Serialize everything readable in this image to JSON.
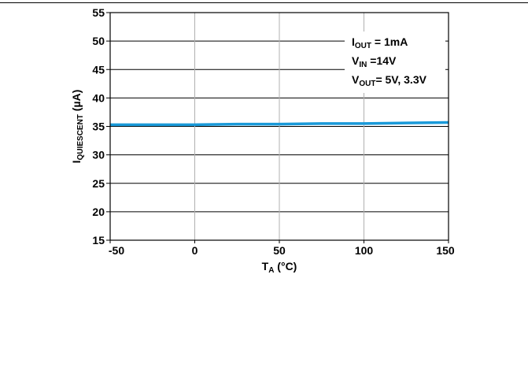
{
  "chart_data": {
    "type": "line",
    "x": [
      -50,
      -25,
      0,
      25,
      50,
      75,
      100,
      125,
      150
    ],
    "series": [
      {
        "values": [
          35.3,
          35.3,
          35.3,
          35.4,
          35.4,
          35.5,
          35.5,
          35.6,
          35.7
        ]
      }
    ],
    "xlabel_main": "T",
    "xlabel_sub": "A",
    "xlabel_unit": " (°C)",
    "ylabel_main": "I",
    "ylabel_sub": "QUIESCENT",
    "ylabel_unit": " (µA)",
    "xlim": [
      -50,
      150
    ],
    "ylim": [
      15,
      55
    ],
    "xticks": [
      -50,
      0,
      50,
      100,
      150
    ],
    "yticks": [
      15,
      20,
      25,
      30,
      35,
      40,
      45,
      50,
      55
    ],
    "vertical_grid": true,
    "horizontal_grid": true,
    "series_color": "#1a9ad9",
    "annotations": [
      {
        "main": "I",
        "sub": "OUT",
        "rest": " = 1mA"
      },
      {
        "main": "V",
        "sub": "IN",
        "rest": " =14V"
      },
      {
        "main": "V",
        "sub": "OUT",
        "rest": "= 5V, 3.3V"
      }
    ]
  }
}
